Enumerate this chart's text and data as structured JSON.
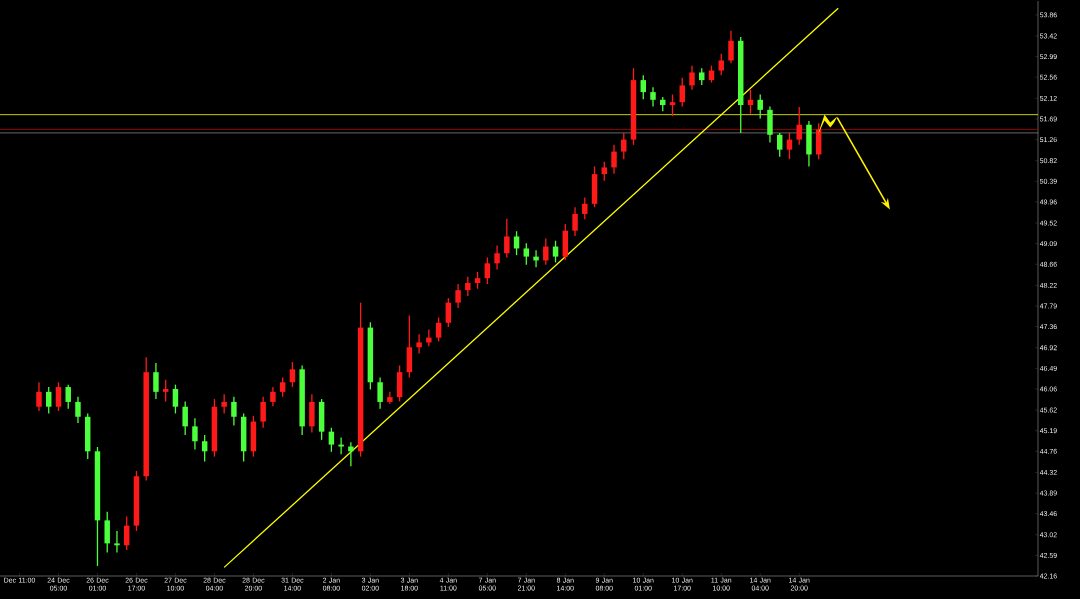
{
  "chart_data": {
    "type": "candlestick",
    "categories": [
      "Dec 11:00",
      null,
      null,
      null,
      "24 Dec 05:00",
      null,
      null,
      null,
      "26 Dec 01:00",
      null,
      null,
      null,
      "26 Dec 17:00",
      null,
      null,
      null,
      "27 Dec 10:00",
      null,
      null,
      null,
      "28 Dec 04:00",
      null,
      null,
      null,
      "28 Dec 20:00",
      null,
      null,
      null,
      "31 Dec 14:00",
      null,
      null,
      null,
      "2 Jan 08:00",
      null,
      null,
      null,
      "3 Jan 02:00",
      null,
      null,
      null,
      "3 Jan 18:00",
      null,
      null,
      null,
      "4 Jan 11:00",
      null,
      null,
      null,
      "7 Jan 05:00",
      null,
      null,
      null,
      "7 Jan 21:00",
      null,
      null,
      null,
      "8 Jan 14:00",
      null,
      null,
      null,
      "9 Jan 08:00",
      null,
      null,
      null,
      "10 Jan 01:00",
      null,
      null,
      null,
      "10 Jan 17:00",
      null,
      null,
      null,
      "11 Jan 10:00",
      null,
      null,
      null,
      "14 Jan 04:00",
      null,
      null,
      null,
      "14 Jan 20:00",
      null,
      null,
      null,
      null,
      null,
      null,
      null,
      null,
      null,
      null,
      null,
      null,
      null,
      null,
      null,
      null,
      null,
      null,
      null,
      null,
      null,
      null,
      null,
      null
    ],
    "ohlc": [
      null,
      null,
      [
        45.69,
        46.2,
        45.6,
        46.0
      ],
      [
        46.0,
        46.1,
        45.55,
        45.69
      ],
      [
        45.69,
        46.2,
        45.6,
        46.1
      ],
      [
        46.1,
        46.15,
        45.65,
        45.79
      ],
      [
        45.79,
        45.9,
        45.35,
        45.48
      ],
      [
        45.48,
        45.55,
        44.6,
        44.76
      ],
      [
        44.76,
        44.85,
        42.37,
        43.32
      ],
      [
        43.32,
        43.5,
        42.65,
        42.84
      ],
      [
        42.84,
        43.1,
        42.65,
        42.8
      ],
      [
        42.8,
        43.4,
        42.7,
        43.21
      ],
      [
        43.21,
        44.35,
        43.1,
        44.24
      ],
      [
        44.24,
        46.72,
        44.15,
        46.41
      ],
      [
        46.41,
        46.6,
        45.85,
        46.0
      ],
      [
        46.0,
        46.25,
        45.8,
        46.06
      ],
      [
        46.06,
        46.15,
        45.55,
        45.69
      ],
      [
        45.69,
        45.8,
        45.1,
        45.28
      ],
      [
        45.28,
        45.45,
        44.8,
        44.97
      ],
      [
        44.97,
        45.1,
        44.55,
        44.76
      ],
      [
        44.76,
        45.85,
        44.65,
        45.69
      ],
      [
        45.69,
        45.95,
        45.55,
        45.79
      ],
      [
        45.79,
        45.9,
        45.3,
        45.48
      ],
      [
        45.48,
        45.55,
        44.55,
        44.76
      ],
      [
        44.76,
        45.5,
        44.65,
        45.38
      ],
      [
        45.38,
        45.9,
        45.25,
        45.79
      ],
      [
        45.79,
        46.1,
        45.7,
        46.0
      ],
      [
        46.0,
        46.3,
        45.9,
        46.2
      ],
      [
        46.2,
        46.62,
        46.1,
        46.47
      ],
      [
        46.47,
        46.55,
        45.1,
        45.28
      ],
      [
        45.28,
        45.95,
        45.15,
        45.79
      ],
      [
        45.79,
        45.85,
        45.0,
        45.17
      ],
      [
        45.17,
        45.25,
        44.75,
        44.9
      ],
      [
        44.9,
        45.05,
        44.7,
        44.86
      ],
      [
        44.86,
        44.95,
        44.45,
        44.76
      ],
      [
        44.76,
        47.86,
        44.65,
        47.34
      ],
      [
        47.34,
        47.45,
        46.05,
        46.2
      ],
      [
        46.2,
        46.3,
        45.65,
        45.79
      ],
      [
        45.79,
        46.0,
        45.75,
        45.89
      ],
      [
        45.89,
        46.55,
        45.8,
        46.41
      ],
      [
        46.41,
        47.59,
        46.3,
        46.93
      ],
      [
        46.93,
        47.2,
        46.8,
        47.03
      ],
      [
        47.03,
        47.3,
        46.95,
        47.13
      ],
      [
        47.13,
        47.55,
        47.05,
        47.44
      ],
      [
        47.44,
        47.95,
        47.35,
        47.86
      ],
      [
        47.86,
        48.25,
        47.75,
        48.12
      ],
      [
        48.12,
        48.4,
        48.0,
        48.27
      ],
      [
        48.27,
        48.5,
        48.15,
        48.37
      ],
      [
        48.37,
        48.8,
        48.25,
        48.68
      ],
      [
        48.68,
        49.05,
        48.55,
        48.89
      ],
      [
        48.89,
        49.61,
        48.8,
        49.24
      ],
      [
        49.24,
        49.35,
        48.85,
        48.99
      ],
      [
        48.99,
        49.1,
        48.65,
        48.82
      ],
      [
        48.82,
        48.95,
        48.6,
        48.74
      ],
      [
        48.74,
        49.2,
        48.65,
        49.03
      ],
      [
        49.03,
        49.15,
        48.7,
        48.82
      ],
      [
        48.82,
        49.5,
        48.75,
        49.36
      ],
      [
        49.36,
        49.85,
        49.25,
        49.71
      ],
      [
        49.71,
        50.05,
        49.6,
        49.92
      ],
      [
        49.92,
        50.7,
        49.85,
        50.54
      ],
      [
        50.54,
        50.8,
        50.4,
        50.68
      ],
      [
        50.68,
        51.15,
        50.55,
        51.01
      ],
      [
        51.01,
        51.4,
        50.85,
        51.26
      ],
      [
        51.26,
        52.75,
        51.15,
        52.5
      ],
      [
        52.5,
        52.6,
        52.1,
        52.25
      ],
      [
        52.25,
        52.35,
        51.95,
        52.09
      ],
      [
        52.09,
        52.15,
        51.85,
        51.98
      ],
      [
        51.98,
        52.2,
        51.75,
        52.04
      ],
      [
        52.04,
        52.55,
        51.95,
        52.39
      ],
      [
        52.39,
        52.8,
        52.3,
        52.66
      ],
      [
        52.66,
        52.75,
        52.4,
        52.5
      ],
      [
        52.5,
        52.8,
        52.45,
        52.7
      ],
      [
        52.7,
        53.05,
        52.6,
        52.91
      ],
      [
        52.91,
        53.53,
        52.85,
        53.32
      ],
      [
        53.32,
        53.4,
        51.4,
        51.98
      ],
      [
        51.98,
        52.3,
        51.8,
        52.09
      ],
      [
        52.09,
        52.2,
        51.7,
        51.88
      ],
      [
        51.88,
        51.95,
        51.2,
        51.36
      ],
      [
        51.36,
        51.4,
        50.9,
        51.05
      ],
      [
        51.05,
        51.4,
        50.85,
        51.26
      ],
      [
        51.26,
        51.94,
        51.15,
        51.57
      ],
      [
        51.57,
        51.65,
        50.7,
        50.95
      ],
      [
        50.95,
        51.6,
        50.85,
        51.47
      ],
      null,
      null,
      null,
      null,
      null,
      null,
      null,
      null,
      null,
      null,
      null,
      null,
      null,
      null,
      null,
      null,
      null,
      null,
      null,
      null,
      null,
      null
    ],
    "colors": [
      null,
      null,
      "#ff1a1a",
      "#4cff3c",
      "#ff1a1a",
      "#4cff3c",
      "#4cff3c",
      "#4cff3c",
      "#4cff3c",
      "#4cff3c",
      "#4cff3c",
      "#ff1a1a",
      "#ff1a1a",
      "#ff1a1a",
      "#4cff3c",
      "#ff1a1a",
      "#4cff3c",
      "#4cff3c",
      "#4cff3c",
      "#4cff3c",
      "#ff1a1a",
      "#ff1a1a",
      "#4cff3c",
      "#4cff3c",
      "#ff1a1a",
      "#ff1a1a",
      "#ff1a1a",
      "#ff1a1a",
      "#ff1a1a",
      "#4cff3c",
      "#ff1a1a",
      "#4cff3c",
      "#4cff3c",
      "#4cff3c",
      "#4cff3c",
      "#ff1a1a",
      "#4cff3c",
      "#4cff3c",
      "#ff1a1a",
      "#ff1a1a",
      "#ff1a1a",
      "#ff1a1a",
      "#ff1a1a",
      "#ff1a1a",
      "#ff1a1a",
      "#ff1a1a",
      "#ff1a1a",
      "#ff1a1a",
      "#ff1a1a",
      "#ff1a1a",
      "#ff1a1a",
      "#4cff3c",
      "#4cff3c",
      "#4cff3c",
      "#ff1a1a",
      "#4cff3c",
      "#ff1a1a",
      "#ff1a1a",
      "#ff1a1a",
      "#ff1a1a",
      "#ff1a1a",
      "#ff1a1a",
      "#ff1a1a",
      "#ff1a1a",
      "#4cff3c",
      "#4cff3c",
      "#4cff3c",
      "#ff1a1a",
      "#ff1a1a",
      "#ff1a1a",
      "#4cff3c",
      "#ff1a1a",
      "#ff1a1a",
      "#ff1a1a",
      "#4cff3c",
      "#ff1a1a",
      "#4cff3c",
      "#4cff3c",
      "#4cff3c",
      "#ff1a1a",
      "#ff1a1a",
      "#4cff3c",
      "#ff1a1a",
      null,
      null,
      null,
      null,
      null,
      null,
      null,
      null,
      null,
      null,
      null,
      null,
      null,
      null,
      null,
      null,
      null,
      null,
      null,
      null,
      null,
      null
    ],
    "series": [
      {
        "type": "line",
        "color": "#ffff00",
        "values": [
          null,
          null,
          null,
          null,
          null,
          null,
          null,
          null,
          null,
          null,
          null,
          null,
          null,
          null,
          null,
          null,
          null,
          null,
          null,
          null,
          null,
          42.34,
          null,
          null,
          null,
          null,
          null,
          null,
          null,
          null,
          null,
          null,
          null,
          null,
          null,
          null,
          null,
          null,
          null,
          null,
          null,
          null,
          null,
          null,
          null,
          null,
          null,
          null,
          null,
          null,
          null,
          null,
          null,
          null,
          null,
          null,
          null,
          null,
          null,
          null,
          null,
          null,
          null,
          null,
          null,
          null,
          null,
          null,
          null,
          null,
          null,
          null,
          null,
          null,
          null,
          null,
          null,
          null,
          null,
          null,
          null,
          null,
          null,
          null,
          54.0,
          null,
          null,
          null,
          null,
          null,
          null,
          null,
          null,
          null,
          null,
          null,
          null,
          null,
          null,
          null,
          null,
          null,
          null,
          null,
          null
        ]
      }
    ],
    "ref_lines": [
      {
        "axis": "y",
        "value": 51.78,
        "color": "#ffff00"
      },
      {
        "axis": "y",
        "value": 51.47,
        "color": "#b00000"
      },
      {
        "axis": "y",
        "value": 51.4,
        "color": "#808080"
      }
    ],
    "ylim": [
      42.16,
      54.15
    ],
    "yticks": [
      53.86,
      53.42,
      52.99,
      52.56,
      52.12,
      51.69,
      51.26,
      50.82,
      50.39,
      49.96,
      49.52,
      49.09,
      48.66,
      48.22,
      47.79,
      47.36,
      46.92,
      46.49,
      46.06,
      45.62,
      45.19,
      44.76,
      44.32,
      43.89,
      43.46,
      43.02,
      42.59,
      42.16
    ],
    "grid": false
  }
}
